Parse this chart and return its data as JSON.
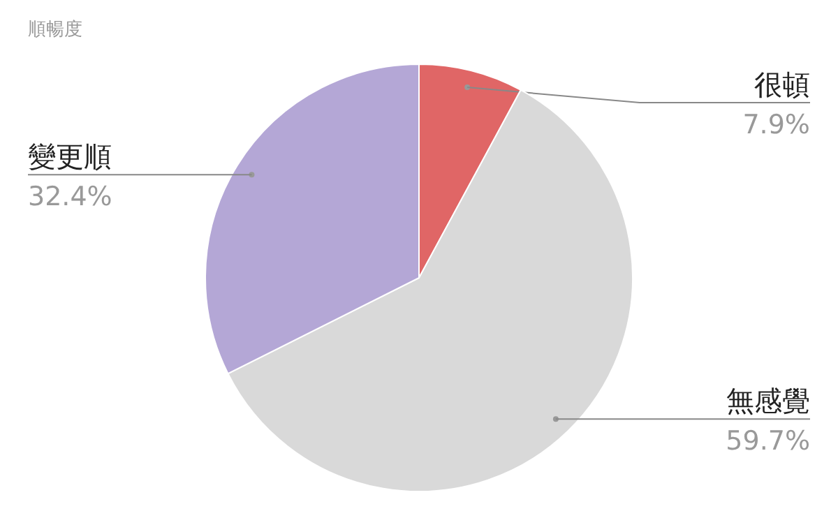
{
  "chart_data": {
    "type": "pie",
    "title": "順暢度",
    "categories": [
      "很頓",
      "無感覺",
      "變更順"
    ],
    "values": [
      7.9,
      59.7,
      32.4
    ],
    "colors": [
      "#e06666",
      "#d9d9d9",
      "#b4a7d6"
    ],
    "value_labels": [
      "7.9%",
      "59.7%",
      "32.4%"
    ]
  }
}
